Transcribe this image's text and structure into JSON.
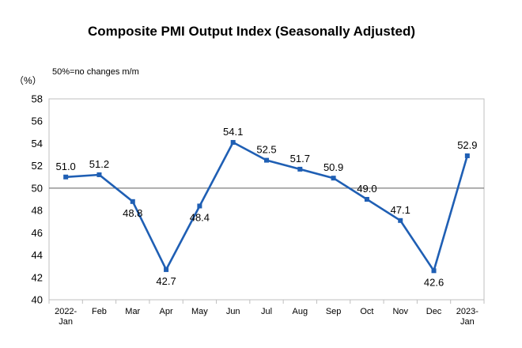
{
  "chart_data": {
    "type": "line",
    "title": "Composite PMI Output Index (Seasonally Adjusted)",
    "annotation": "50%=no changes m/m",
    "unit_label": "（%）",
    "categories": [
      [
        "2022-",
        "Jan"
      ],
      [
        "Feb"
      ],
      [
        "Mar"
      ],
      [
        "Apr"
      ],
      [
        "May"
      ],
      [
        "Jun"
      ],
      [
        "Jul"
      ],
      [
        "Aug"
      ],
      [
        "Sep"
      ],
      [
        "Oct"
      ],
      [
        "Nov"
      ],
      [
        "Dec"
      ],
      [
        "2023-",
        "Jan"
      ]
    ],
    "values": [
      51.0,
      51.2,
      48.8,
      42.7,
      48.4,
      54.1,
      52.5,
      51.7,
      50.9,
      49.0,
      47.1,
      42.6,
      52.9
    ],
    "data_labels": [
      "51.0",
      "51.2",
      "48.8",
      "42.7",
      "48.4",
      "54.1",
      "52.5",
      "51.7",
      "50.9",
      "49.0",
      "47.1",
      "42.6",
      "52.9"
    ],
    "label_position": [
      "above",
      "above",
      "below",
      "below",
      "below",
      "above",
      "above",
      "above",
      "above",
      "above",
      "above",
      "below",
      "above"
    ],
    "yticks": [
      "40",
      "42",
      "44",
      "46",
      "48",
      "50",
      "52",
      "54",
      "56",
      "58"
    ],
    "ylim": [
      40,
      58
    ],
    "reference_line": 50,
    "grid": false,
    "line_color": "#1f5fb4",
    "reference_color": "#7f7f7f"
  }
}
